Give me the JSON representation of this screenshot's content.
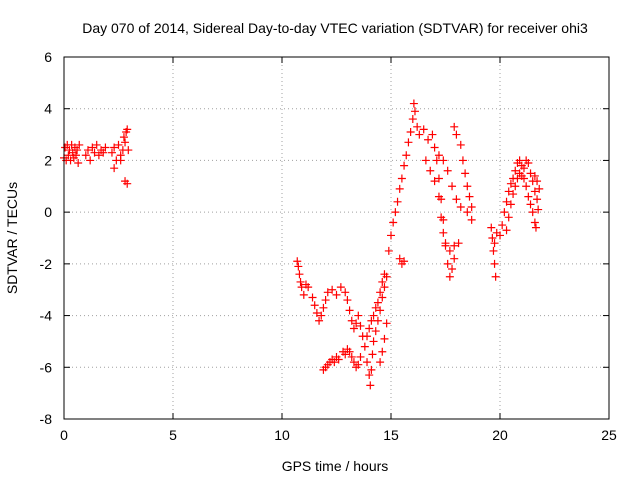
{
  "chart_data": {
    "type": "scatter",
    "title": "Day 070 of 2014, Sidereal Day-to-day VTEC variation (SDTVAR) for receiver ohi3",
    "xlabel": "GPS time / hours",
    "ylabel": "SDTVAR / TECUs",
    "xlim": [
      0,
      25
    ],
    "ylim": [
      -8,
      6
    ],
    "xticks": [
      "0",
      "5",
      "10",
      "15",
      "20",
      "25"
    ],
    "yticks": [
      "-8",
      "-6",
      "-4",
      "-2",
      "0",
      "2",
      "4",
      "6"
    ],
    "grid": true,
    "marker": "+",
    "color": "#ff0000",
    "series": [
      {
        "points": [
          [
            0.0,
            2.1
          ],
          [
            0.05,
            2.5
          ],
          [
            0.1,
            2.0
          ],
          [
            0.15,
            2.6
          ],
          [
            0.2,
            2.2
          ],
          [
            0.25,
            2.4
          ],
          [
            0.3,
            2.0
          ],
          [
            0.35,
            2.6
          ],
          [
            0.4,
            2.3
          ],
          [
            0.45,
            2.1
          ],
          [
            0.5,
            2.5
          ],
          [
            0.55,
            2.2
          ],
          [
            0.6,
            2.4
          ],
          [
            0.65,
            1.9
          ],
          [
            0.7,
            2.6
          ],
          [
            1.0,
            2.2
          ],
          [
            1.1,
            2.4
          ],
          [
            1.2,
            2.0
          ],
          [
            1.3,
            2.5
          ],
          [
            1.4,
            2.3
          ],
          [
            1.5,
            2.6
          ],
          [
            1.6,
            2.2
          ],
          [
            1.7,
            2.4
          ],
          [
            1.8,
            2.3
          ],
          [
            1.9,
            2.5
          ],
          [
            2.2,
            2.3
          ],
          [
            2.3,
            2.5
          ],
          [
            2.4,
            2.0
          ],
          [
            2.5,
            2.6
          ],
          [
            2.6,
            2.2
          ],
          [
            2.7,
            2.4
          ],
          [
            2.75,
            2.9
          ],
          [
            2.8,
            2.7
          ],
          [
            2.85,
            3.1
          ],
          [
            2.9,
            3.2
          ],
          [
            2.95,
            2.4
          ],
          [
            2.3,
            1.7
          ],
          [
            2.6,
            2.0
          ],
          [
            2.8,
            1.2
          ],
          [
            2.9,
            1.1
          ],
          [
            10.7,
            -1.9
          ],
          [
            10.75,
            -2.1
          ],
          [
            10.8,
            -2.4
          ],
          [
            10.85,
            -2.7
          ],
          [
            10.9,
            -2.9
          ],
          [
            11.0,
            -3.2
          ],
          [
            11.1,
            -2.8
          ],
          [
            11.2,
            -2.9
          ],
          [
            11.4,
            -3.3
          ],
          [
            11.5,
            -3.6
          ],
          [
            11.6,
            -3.9
          ],
          [
            11.7,
            -4.2
          ],
          [
            11.8,
            -4.0
          ],
          [
            11.9,
            -3.7
          ],
          [
            12.0,
            -3.4
          ],
          [
            12.1,
            -3.1
          ],
          [
            12.3,
            -3.0
          ],
          [
            12.5,
            -3.2
          ],
          [
            12.7,
            -2.9
          ],
          [
            12.9,
            -3.1
          ],
          [
            13.0,
            -3.4
          ],
          [
            13.1,
            -3.8
          ],
          [
            13.2,
            -4.2
          ],
          [
            13.3,
            -4.5
          ],
          [
            13.4,
            -4.3
          ],
          [
            13.5,
            -4.0
          ],
          [
            13.6,
            -4.4
          ],
          [
            13.7,
            -4.8
          ],
          [
            13.8,
            -5.2
          ],
          [
            11.9,
            -6.1
          ],
          [
            12.0,
            -6.0
          ],
          [
            12.1,
            -5.9
          ],
          [
            12.2,
            -5.8
          ],
          [
            12.3,
            -5.7
          ],
          [
            12.4,
            -5.8
          ],
          [
            12.5,
            -5.6
          ],
          [
            12.6,
            -5.7
          ],
          [
            12.8,
            -5.4
          ],
          [
            12.9,
            -5.5
          ],
          [
            13.0,
            -5.3
          ],
          [
            13.1,
            -5.4
          ],
          [
            13.2,
            -5.6
          ],
          [
            13.3,
            -5.8
          ],
          [
            13.4,
            -6.0
          ],
          [
            13.5,
            -5.9
          ],
          [
            13.6,
            -5.6
          ],
          [
            13.9,
            -5.8
          ],
          [
            14.0,
            -6.3
          ],
          [
            14.05,
            -6.7
          ],
          [
            14.1,
            -6.1
          ],
          [
            14.15,
            -5.5
          ],
          [
            14.2,
            -5.0
          ],
          [
            14.3,
            -4.6
          ],
          [
            14.4,
            -4.2
          ],
          [
            14.5,
            -3.8
          ],
          [
            14.6,
            -3.3
          ],
          [
            14.7,
            -2.9
          ],
          [
            14.8,
            -2.5
          ],
          [
            14.5,
            -5.8
          ],
          [
            14.6,
            -5.4
          ],
          [
            14.7,
            -4.9
          ],
          [
            14.8,
            -4.3
          ],
          [
            13.9,
            -4.8
          ],
          [
            14.0,
            -4.5
          ],
          [
            14.1,
            -4.2
          ],
          [
            14.2,
            -4.0
          ],
          [
            14.3,
            -3.7
          ],
          [
            14.4,
            -3.5
          ],
          [
            14.5,
            -3.1
          ],
          [
            14.6,
            -2.7
          ],
          [
            14.7,
            -2.4
          ],
          [
            14.9,
            -1.5
          ],
          [
            15.0,
            -0.9
          ],
          [
            15.1,
            -0.4
          ],
          [
            15.2,
            0.0
          ],
          [
            15.3,
            0.4
          ],
          [
            15.4,
            0.9
          ],
          [
            15.5,
            1.3
          ],
          [
            15.6,
            1.8
          ],
          [
            15.7,
            2.2
          ],
          [
            15.8,
            2.7
          ],
          [
            15.9,
            3.1
          ],
          [
            16.0,
            3.6
          ],
          [
            16.05,
            4.2
          ],
          [
            16.1,
            3.9
          ],
          [
            16.2,
            3.3
          ],
          [
            15.4,
            -1.8
          ],
          [
            15.5,
            -2.0
          ],
          [
            15.6,
            -1.9
          ],
          [
            16.3,
            3.0
          ],
          [
            16.5,
            3.2
          ],
          [
            16.7,
            2.8
          ],
          [
            16.9,
            3.0
          ],
          [
            17.0,
            2.5
          ],
          [
            17.1,
            2.0
          ],
          [
            17.2,
            1.3
          ],
          [
            17.3,
            0.5
          ],
          [
            17.4,
            -0.3
          ],
          [
            17.5,
            -1.2
          ],
          [
            17.6,
            -2.0
          ],
          [
            17.7,
            -2.5
          ],
          [
            17.8,
            -2.2
          ],
          [
            17.9,
            -1.8
          ],
          [
            16.6,
            2.0
          ],
          [
            16.8,
            1.6
          ],
          [
            17.0,
            1.2
          ],
          [
            17.2,
            0.6
          ],
          [
            17.3,
            -0.2
          ],
          [
            17.4,
            -0.8
          ],
          [
            17.5,
            -1.3
          ],
          [
            17.7,
            -1.5
          ],
          [
            17.9,
            -1.3
          ],
          [
            18.1,
            -1.2
          ],
          [
            17.2,
            2.2
          ],
          [
            17.4,
            2.0
          ],
          [
            17.6,
            1.6
          ],
          [
            17.8,
            1.0
          ],
          [
            18.0,
            0.5
          ],
          [
            18.2,
            0.2
          ],
          [
            18.5,
            0.0
          ],
          [
            18.7,
            -0.3
          ],
          [
            17.9,
            3.3
          ],
          [
            18.0,
            3.0
          ],
          [
            18.2,
            2.6
          ],
          [
            18.3,
            2.0
          ],
          [
            18.4,
            1.5
          ],
          [
            18.5,
            1.0
          ],
          [
            18.6,
            0.6
          ],
          [
            18.7,
            0.2
          ],
          [
            19.6,
            -0.6
          ],
          [
            19.65,
            -1.0
          ],
          [
            19.7,
            -1.5
          ],
          [
            19.75,
            -2.0
          ],
          [
            19.8,
            -2.5
          ],
          [
            19.75,
            -1.2
          ],
          [
            19.85,
            -0.8
          ],
          [
            20.0,
            -0.9
          ],
          [
            20.1,
            -0.5
          ],
          [
            20.2,
            0.0
          ],
          [
            20.3,
            0.4
          ],
          [
            20.4,
            0.8
          ],
          [
            20.5,
            1.1
          ],
          [
            20.6,
            1.3
          ],
          [
            20.7,
            1.6
          ],
          [
            20.8,
            1.9
          ],
          [
            20.9,
            2.0
          ],
          [
            21.0,
            1.8
          ],
          [
            21.1,
            1.7
          ],
          [
            21.2,
            2.0
          ],
          [
            21.3,
            1.9
          ],
          [
            21.4,
            1.5
          ],
          [
            21.5,
            1.2
          ],
          [
            21.6,
            0.8
          ],
          [
            21.7,
            0.5
          ],
          [
            21.75,
            0.1
          ],
          [
            21.8,
            0.9
          ],
          [
            21.7,
            1.2
          ],
          [
            21.6,
            1.4
          ],
          [
            20.3,
            -0.7
          ],
          [
            20.4,
            -0.2
          ],
          [
            20.5,
            0.3
          ],
          [
            20.6,
            0.7
          ],
          [
            20.7,
            1.0
          ],
          [
            20.8,
            1.3
          ],
          [
            20.9,
            1.5
          ],
          [
            21.0,
            1.4
          ],
          [
            21.1,
            1.3
          ],
          [
            21.2,
            1.0
          ],
          [
            21.3,
            0.6
          ],
          [
            21.4,
            0.3
          ],
          [
            21.5,
            0.0
          ],
          [
            21.6,
            -0.4
          ],
          [
            21.65,
            -0.6
          ]
        ]
      }
    ]
  }
}
